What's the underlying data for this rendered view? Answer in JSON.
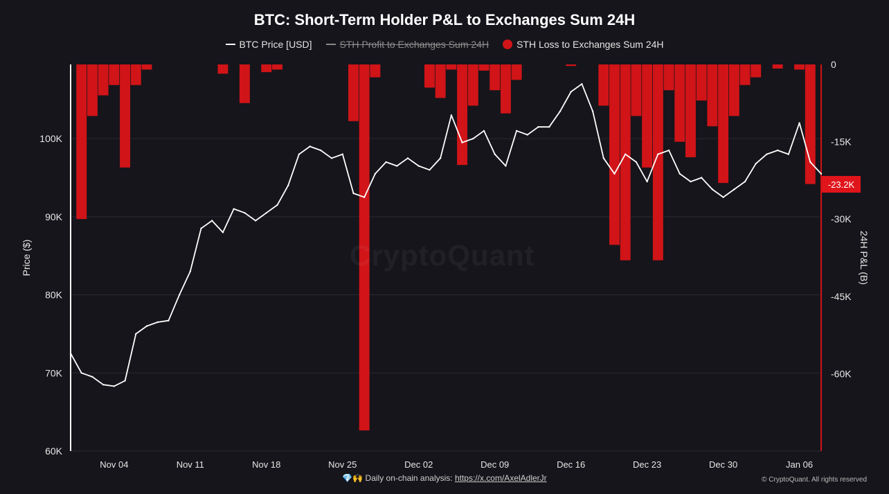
{
  "chart_data": {
    "type": "line",
    "title": "BTC: Short-Term Holder P&L to Exchanges Sum 24H",
    "legend": [
      {
        "name": "BTC Price [USD]",
        "color": "#ffffff",
        "style": "line",
        "hidden": false
      },
      {
        "name": "STH Profit to Exchanges Sum 24H",
        "color": "#888888",
        "style": "line",
        "hidden": true
      },
      {
        "name": "STH Loss to Exchanges Sum 24H",
        "color": "#d01418",
        "style": "dot",
        "hidden": false
      }
    ],
    "legend_position": "top-center",
    "ylabel_left": "Price ($)",
    "ylabel_right": "24H P&L (B)",
    "yticks_left": [
      "60K",
      "70K",
      "80K",
      "90K",
      "100K"
    ],
    "yticks_left_values": [
      60000,
      70000,
      80000,
      90000,
      100000
    ],
    "ylim_left": [
      60000,
      109500
    ],
    "yticks_right": [
      "0",
      "-15K",
      "-30K",
      "-45K",
      "-60K"
    ],
    "yticks_right_values": [
      0,
      -15000,
      -30000,
      -45000,
      -60000
    ],
    "ylim_right": [
      -75000,
      0
    ],
    "xticks": [
      "Nov 04",
      "Nov 11",
      "Nov 18",
      "Nov 25",
      "Dec 02",
      "Dec 09",
      "Dec 16",
      "Dec 23",
      "Dec 30",
      "Jan 06"
    ],
    "xticks_values": [
      "2024-11-04",
      "2024-11-11",
      "2024-11-18",
      "2024-11-25",
      "2024-12-02",
      "2024-12-09",
      "2024-12-16",
      "2024-12-23",
      "2024-12-30",
      "2025-01-06"
    ],
    "x_range": [
      "2024-10-31",
      "2025-01-08"
    ],
    "grid": "horizontal",
    "current_value_label": "-23.2K",
    "current_value": -23200,
    "series": [
      {
        "name": "BTC Price [USD]",
        "points": [
          [
            "2024-10-31",
            72500
          ],
          [
            "2024-11-01",
            70000
          ],
          [
            "2024-11-02",
            69500
          ],
          [
            "2024-11-03",
            68500
          ],
          [
            "2024-11-04",
            68300
          ],
          [
            "2024-11-05",
            69000
          ],
          [
            "2024-11-06",
            75000
          ],
          [
            "2024-11-07",
            76000
          ],
          [
            "2024-11-08",
            76500
          ],
          [
            "2024-11-09",
            76700
          ],
          [
            "2024-11-10",
            80000
          ],
          [
            "2024-11-11",
            83000
          ],
          [
            "2024-11-12",
            88500
          ],
          [
            "2024-11-13",
            89500
          ],
          [
            "2024-11-14",
            88000
          ],
          [
            "2024-11-15",
            91000
          ],
          [
            "2024-11-16",
            90500
          ],
          [
            "2024-11-17",
            89500
          ],
          [
            "2024-11-18",
            90500
          ],
          [
            "2024-11-19",
            91500
          ],
          [
            "2024-11-20",
            94000
          ],
          [
            "2024-11-21",
            98000
          ],
          [
            "2024-11-22",
            99000
          ],
          [
            "2024-11-23",
            98500
          ],
          [
            "2024-11-24",
            97500
          ],
          [
            "2024-11-25",
            98000
          ],
          [
            "2024-11-26",
            93000
          ],
          [
            "2024-11-27",
            92500
          ],
          [
            "2024-11-28",
            95500
          ],
          [
            "2024-11-29",
            97000
          ],
          [
            "2024-11-30",
            96500
          ],
          [
            "2024-12-01",
            97500
          ],
          [
            "2024-12-02",
            96500
          ],
          [
            "2024-12-03",
            96000
          ],
          [
            "2024-12-04",
            97500
          ],
          [
            "2024-12-05",
            103000
          ],
          [
            "2024-12-06",
            99500
          ],
          [
            "2024-12-07",
            100000
          ],
          [
            "2024-12-08",
            101000
          ],
          [
            "2024-12-09",
            98000
          ],
          [
            "2024-12-10",
            96500
          ],
          [
            "2024-12-11",
            101000
          ],
          [
            "2024-12-12",
            100500
          ],
          [
            "2024-12-13",
            101500
          ],
          [
            "2024-12-14",
            101500
          ],
          [
            "2024-12-15",
            103500
          ],
          [
            "2024-12-16",
            106000
          ],
          [
            "2024-12-17",
            107000
          ],
          [
            "2024-12-18",
            103500
          ],
          [
            "2024-12-19",
            97500
          ],
          [
            "2024-12-20",
            95500
          ],
          [
            "2024-12-21",
            98000
          ],
          [
            "2024-12-22",
            97000
          ],
          [
            "2024-12-23",
            94500
          ],
          [
            "2024-12-24",
            98000
          ],
          [
            "2024-12-25",
            98500
          ],
          [
            "2024-12-26",
            95500
          ],
          [
            "2024-12-27",
            94500
          ],
          [
            "2024-12-28",
            95000
          ],
          [
            "2024-12-29",
            93500
          ],
          [
            "2024-12-30",
            92500
          ],
          [
            "2024-12-31",
            93500
          ],
          [
            "2025-01-01",
            94500
          ],
          [
            "2025-01-02",
            96800
          ],
          [
            "2025-01-03",
            98000
          ],
          [
            "2025-01-04",
            98500
          ],
          [
            "2025-01-05",
            98000
          ],
          [
            "2025-01-06",
            102000
          ],
          [
            "2025-01-07",
            97000
          ],
          [
            "2025-01-08",
            95500
          ]
        ]
      },
      {
        "name": "STH Loss to Exchanges Sum 24H",
        "points": [
          [
            "2024-11-01",
            -30000
          ],
          [
            "2024-11-02",
            -10000
          ],
          [
            "2024-11-03",
            -6000
          ],
          [
            "2024-11-04",
            -4000
          ],
          [
            "2024-11-05",
            -20000
          ],
          [
            "2024-11-06",
            -4000
          ],
          [
            "2024-11-07",
            -1000
          ],
          [
            "2024-11-14",
            -1800
          ],
          [
            "2024-11-16",
            -7500
          ],
          [
            "2024-11-18",
            -1500
          ],
          [
            "2024-11-19",
            -1000
          ],
          [
            "2024-11-26",
            -11000
          ],
          [
            "2024-11-27",
            -71000
          ],
          [
            "2024-11-28",
            -2500
          ],
          [
            "2024-12-03",
            -4500
          ],
          [
            "2024-12-04",
            -6500
          ],
          [
            "2024-12-05",
            -1000
          ],
          [
            "2024-12-06",
            -19500
          ],
          [
            "2024-12-07",
            -8000
          ],
          [
            "2024-12-08",
            -1200
          ],
          [
            "2024-12-09",
            -5000
          ],
          [
            "2024-12-10",
            -9500
          ],
          [
            "2024-12-11",
            -3000
          ],
          [
            "2024-12-16",
            -300
          ],
          [
            "2024-12-19",
            -8000
          ],
          [
            "2024-12-20",
            -35000
          ],
          [
            "2024-12-21",
            -38000
          ],
          [
            "2024-12-22",
            -10000
          ],
          [
            "2024-12-23",
            -20000
          ],
          [
            "2024-12-24",
            -38000
          ],
          [
            "2024-12-25",
            -5000
          ],
          [
            "2024-12-26",
            -15000
          ],
          [
            "2024-12-27",
            -18000
          ],
          [
            "2024-12-28",
            -7000
          ],
          [
            "2024-12-29",
            -12000
          ],
          [
            "2024-12-30",
            -23000
          ],
          [
            "2024-12-31",
            -10000
          ],
          [
            "2025-01-01",
            -4000
          ],
          [
            "2025-01-02",
            -2500
          ],
          [
            "2025-01-04",
            -800
          ],
          [
            "2025-01-06",
            -1000
          ],
          [
            "2025-01-07",
            -23200
          ]
        ]
      }
    ]
  },
  "watermark": "CryptoQuant",
  "footer": {
    "icons": "💎🙌",
    "text": "Daily on-chain analysis: ",
    "link": "https://x.com/AxelAdlerJr",
    "copyright": "© CryptoQuant. All rights reserved"
  }
}
